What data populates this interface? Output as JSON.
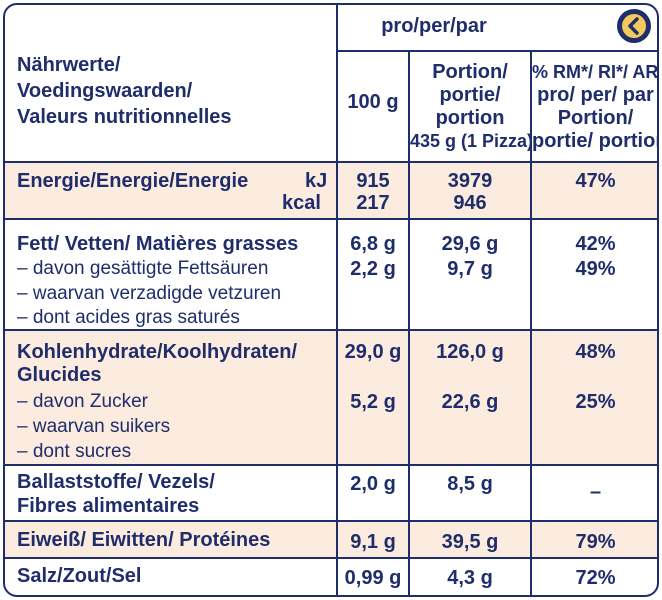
{
  "header": {
    "per": "pro/per/par",
    "label": [
      "Nährwerte/",
      "Voedingswaarden/",
      "Valeurs nutritionnelles"
    ],
    "col100": "100 g",
    "colPortion": [
      "Portion/",
      "portie/",
      "portion",
      "435 g (1 Pizza)"
    ],
    "colRi": [
      "% RM*/ RI*/ AR*",
      "pro/ per/ par",
      "Portion/",
      "portie/ portion"
    ]
  },
  "rows": {
    "energy": {
      "label": "Energie/Energie/Energie",
      "kj": "kJ",
      "kcal": "kcal",
      "v100kj": "915",
      "v100kcal": "217",
      "vPortKj": "3979",
      "vPortKcal": "946",
      "ri": "47%"
    },
    "fat": {
      "label": "Fett/ Vetten/ Matières grasses",
      "sub": [
        "– davon gesättigte Fettsäuren",
        "– waarvan verzadigde vetzuren",
        "– dont acides gras saturés"
      ],
      "v100": "6,8 g",
      "v100sub": "2,2 g",
      "vPort": "29,6 g",
      "vPortSub": "9,7 g",
      "ri": "42%",
      "riSub": "49%"
    },
    "carbs": {
      "label": [
        "Kohlenhydrate/Koolhydraten/",
        "Glucides"
      ],
      "sub": [
        "– davon Zucker",
        "– waarvan suikers",
        "– dont sucres"
      ],
      "v100": "29,0 g",
      "v100sub": "5,2 g",
      "vPort": "126,0 g",
      "vPortSub": "22,6 g",
      "ri": "48%",
      "riSub": "25%"
    },
    "fibre": {
      "label": [
        "Ballaststoffe/ Vezels/",
        "Fibres alimentaires"
      ],
      "v100": "2,0 g",
      "vPort": "8,5 g",
      "ri": "–"
    },
    "protein": {
      "label": "Eiweiß/ Eiwitten/ Protéines",
      "v100": "9,1 g",
      "vPort": "39,5 g",
      "ri": "79%"
    },
    "salt": {
      "label": "Salz/Zout/Sel",
      "v100": "0,99 g",
      "vPort": "4,3 g",
      "ri": "72%"
    }
  },
  "icons": {
    "corner": "back-arrow-icon"
  },
  "colors": {
    "text": "#1f2d6b",
    "shade": "#fcebdf",
    "badge": "#f3c95c"
  }
}
